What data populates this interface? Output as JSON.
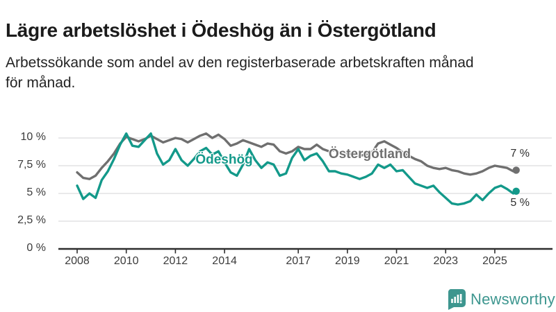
{
  "header": {
    "title": "Lägre arbetslöshet i Ödeshög än i Östergötland",
    "subtitle": "Arbetssökande som andel av den registerbaserade arbetskraften månad för månad.",
    "subtitle_lines": [
      "Arbetssökande som andel av den registerbaserade arbetskraften månad",
      "för månad."
    ]
  },
  "colors": {
    "odeshog": "#13998a",
    "ostergotland": "#6f6f6f",
    "grid": "#dcdcdd",
    "axis": "#2d2d2d",
    "tick_text": "#3b3b3b",
    "brand": "#3d968f"
  },
  "chart_data": {
    "type": "line",
    "title": "Lägre arbetslöshet i Ödeshög än i Östergötland",
    "xlabel": "",
    "ylabel": "",
    "unit": "%",
    "grid": "horizontal",
    "legend_position": "inline-annotations",
    "ylim": [
      0,
      10.8
    ],
    "xlim": [
      2007.2,
      2026.4
    ],
    "x_ticks": [
      2008,
      2010,
      2012,
      2014,
      2017,
      2019,
      2021,
      2023,
      2025
    ],
    "y_ticks": [
      {
        "label": "10 %",
        "value": 10
      },
      {
        "label": "7,5 %",
        "value": 7.5
      },
      {
        "label": "5 %",
        "value": 5
      },
      {
        "label": "2,5 %",
        "value": 2.5
      },
      {
        "label": "0 %",
        "value": 0
      }
    ],
    "x": [
      2008,
      2008.25,
      2008.5,
      2008.75,
      2009,
      2009.25,
      2009.5,
      2009.75,
      2010,
      2010.25,
      2010.5,
      2010.75,
      2011,
      2011.25,
      2011.5,
      2011.75,
      2012,
      2012.25,
      2012.5,
      2012.75,
      2013,
      2013.25,
      2013.5,
      2013.75,
      2014,
      2014.25,
      2014.5,
      2014.75,
      2015,
      2015.25,
      2015.5,
      2015.75,
      2016,
      2016.25,
      2016.5,
      2016.75,
      2017,
      2017.25,
      2017.5,
      2017.75,
      2018,
      2018.25,
      2018.5,
      2018.75,
      2019,
      2019.25,
      2019.5,
      2019.75,
      2020,
      2020.25,
      2020.5,
      2020.75,
      2021,
      2021.25,
      2021.5,
      2021.75,
      2022,
      2022.25,
      2022.5,
      2022.75,
      2023,
      2023.25,
      2023.5,
      2023.75,
      2024,
      2024.25,
      2024.5,
      2024.75,
      2025,
      2025.25,
      2025.5,
      2025.75,
      2025.87
    ],
    "series": [
      {
        "name": "Ödeshög",
        "color": "#13998a",
        "end_label": "5 %",
        "end_value": 5.2,
        "values": [
          5.7,
          4.5,
          5.0,
          4.6,
          6.2,
          7.0,
          8.1,
          9.4,
          10.4,
          9.3,
          9.2,
          9.8,
          10.4,
          8.6,
          7.6,
          8.0,
          9.0,
          8.0,
          7.5,
          8.1,
          8.8,
          9.1,
          8.5,
          8.8,
          7.8,
          6.9,
          6.6,
          7.6,
          9.0,
          8.0,
          7.3,
          7.8,
          7.6,
          6.6,
          6.8,
          8.2,
          9.0,
          8.0,
          8.4,
          8.6,
          7.9,
          7.0,
          7.0,
          6.8,
          6.7,
          6.5,
          6.3,
          6.5,
          6.8,
          7.6,
          7.3,
          7.6,
          7.0,
          7.1,
          6.5,
          5.9,
          5.7,
          5.5,
          5.7,
          5.1,
          4.6,
          4.1,
          4.0,
          4.1,
          4.3,
          4.9,
          4.4,
          5.0,
          5.5,
          5.7,
          5.4,
          5.0,
          5.2
        ]
      },
      {
        "name": "Östergötland",
        "color": "#6f6f6f",
        "end_label": "7 %",
        "end_value": 7.1,
        "values": [
          6.9,
          6.4,
          6.3,
          6.6,
          7.3,
          7.9,
          8.6,
          9.5,
          10.1,
          9.9,
          9.7,
          9.9,
          10.2,
          9.9,
          9.6,
          9.8,
          10.0,
          9.9,
          9.6,
          9.9,
          10.2,
          10.4,
          10.0,
          10.3,
          9.9,
          9.3,
          9.5,
          9.8,
          9.6,
          9.4,
          9.2,
          9.5,
          9.4,
          8.8,
          8.6,
          8.8,
          9.2,
          9.0,
          9.0,
          9.4,
          9.0,
          8.8,
          8.9,
          8.6,
          8.6,
          8.5,
          8.4,
          8.5,
          8.7,
          9.5,
          9.7,
          9.4,
          9.1,
          8.7,
          8.4,
          8.1,
          7.9,
          7.5,
          7.3,
          7.2,
          7.3,
          7.1,
          7.0,
          6.8,
          6.7,
          6.8,
          7.0,
          7.3,
          7.5,
          7.4,
          7.3,
          7.0,
          7.1
        ]
      }
    ]
  },
  "footer": {
    "brand": "Newsworthy",
    "logo_icon": "newsworthy-speech-bubble-bar-chart-icon"
  }
}
